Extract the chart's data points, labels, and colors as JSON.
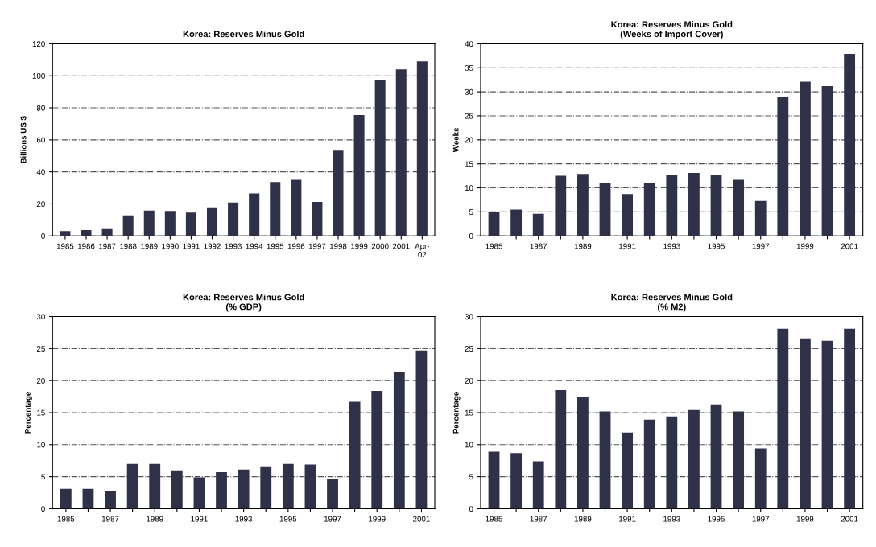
{
  "chart_data": [
    {
      "type": "bar",
      "title": "Korea: Reserves Minus Gold",
      "ylabel": "Billions US $",
      "color": "#2e3148",
      "grid": "y",
      "categories": [
        "1985",
        "1986",
        "1987",
        "1988",
        "1989",
        "1990",
        "1991",
        "1992",
        "1993",
        "1994",
        "1995",
        "1996",
        "1997",
        "1998",
        "1999",
        "2000",
        "2001",
        "Apr-\n02"
      ],
      "values": [
        3,
        3.7,
        4.3,
        12.8,
        15.8,
        15.6,
        14.6,
        17.8,
        20.8,
        26.5,
        33.6,
        35,
        21.2,
        53.3,
        75.5,
        97.4,
        104,
        109
      ],
      "ylim": [
        0,
        120
      ],
      "yticks": [
        0,
        20,
        40,
        60,
        80,
        100,
        120
      ]
    },
    {
      "type": "bar",
      "title": "Korea: Reserves Minus Gold\n(Weeks of Import Cover)",
      "ylabel": "Weeks",
      "color": "#2e3148",
      "grid": "y",
      "categories": [
        "1985",
        null,
        "1987",
        null,
        "1989",
        null,
        "1991",
        null,
        "1993",
        null,
        "1995",
        null,
        "1997",
        null,
        "1999",
        null,
        "2001"
      ],
      "values": [
        5.0,
        5.5,
        4.6,
        12.5,
        12.9,
        11.0,
        8.7,
        11.0,
        12.6,
        13.1,
        12.6,
        11.7,
        7.3,
        29.0,
        32.1,
        31.2,
        37.9
      ],
      "ylim": [
        0,
        40
      ],
      "yticks": [
        0,
        5,
        10,
        15,
        20,
        25,
        30,
        35,
        40
      ]
    },
    {
      "type": "bar",
      "title": "Korea: Reserves Minus Gold\n(% GDP)",
      "ylabel": "Percentage",
      "color": "#2e3148",
      "grid": "y",
      "categories": [
        "1985",
        null,
        "1987",
        null,
        "1989",
        null,
        "1991",
        null,
        "1993",
        null,
        "1995",
        null,
        "1997",
        null,
        "1999",
        null,
        "2001"
      ],
      "values": [
        3.1,
        3.1,
        2.7,
        7.0,
        7.0,
        6.0,
        4.9,
        5.7,
        6.1,
        6.6,
        7.0,
        6.9,
        4.6,
        16.7,
        18.4,
        21.3,
        24.7
      ],
      "ylim": [
        0,
        30
      ],
      "yticks": [
        0,
        5,
        10,
        15,
        20,
        25,
        30
      ]
    },
    {
      "type": "bar",
      "title": "Korea: Reserves Minus Gold\n(% M2)",
      "ylabel": "Percentage",
      "color": "#2e3148",
      "grid": "y",
      "categories": [
        "1985",
        null,
        "1987",
        null,
        "1989",
        null,
        "1991",
        null,
        "1993",
        null,
        "1995",
        null,
        "1997",
        null,
        "1999",
        null,
        "2001"
      ],
      "values": [
        8.9,
        8.7,
        7.4,
        18.5,
        17.4,
        15.2,
        11.9,
        13.9,
        14.4,
        15.4,
        16.3,
        15.2,
        9.4,
        28.1,
        26.6,
        26.2,
        28.1
      ],
      "ylim": [
        0,
        30
      ],
      "yticks": [
        0,
        5,
        10,
        15,
        20,
        25,
        30
      ]
    }
  ]
}
